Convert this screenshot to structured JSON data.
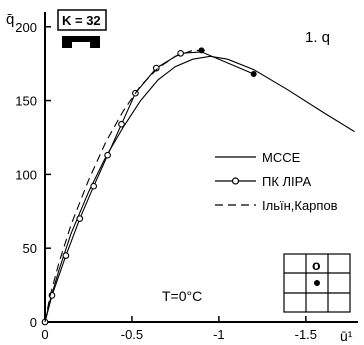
{
  "chart_data": {
    "type": "line",
    "ylabel": "q̄",
    "xlabel": "ū¹",
    "panel_label": "1. q",
    "badge": "K = 32",
    "annotation": "T=0°C",
    "cell_marker": "o",
    "xlim": [
      0,
      -1.8
    ],
    "ylim": [
      0,
      210
    ],
    "x_ticks": [
      "0",
      "-0.5",
      "-1",
      "-1.5"
    ],
    "x_tick_values": [
      0,
      -0.5,
      -1,
      -1.5
    ],
    "y_ticks": [
      "0",
      "50",
      "100",
      "150",
      "200"
    ],
    "y_tick_values": [
      0,
      50,
      100,
      150,
      200
    ],
    "legend_position": "center-right",
    "series": [
      {
        "name": "МССЕ",
        "style": "solid",
        "marker": "none",
        "points": [
          [
            0,
            0
          ],
          [
            -0.03,
            15
          ],
          [
            -0.08,
            35
          ],
          [
            -0.15,
            60
          ],
          [
            -0.25,
            88
          ],
          [
            -0.35,
            112
          ],
          [
            -0.45,
            132
          ],
          [
            -0.55,
            150
          ],
          [
            -0.65,
            164
          ],
          [
            -0.75,
            173
          ],
          [
            -0.85,
            178
          ],
          [
            -0.95,
            180
          ],
          [
            -1.05,
            178
          ],
          [
            -1.2,
            171
          ],
          [
            -1.4,
            157
          ],
          [
            -1.6,
            142
          ],
          [
            -1.78,
            129
          ]
        ]
      },
      {
        "name": "ПК ЛІРА",
        "style": "solid",
        "marker": "circle",
        "points": [
          [
            0,
            0
          ],
          [
            -0.04,
            18
          ],
          [
            -0.12,
            45
          ],
          [
            -0.2,
            70
          ],
          [
            -0.28,
            92
          ],
          [
            -0.36,
            113
          ],
          [
            -0.44,
            134
          ],
          [
            -0.52,
            155
          ],
          [
            -0.64,
            172
          ],
          [
            -0.78,
            182
          ],
          [
            -0.9,
            183
          ],
          [
            -1.2,
            168
          ]
        ],
        "marked_points": [
          [
            0,
            0
          ],
          [
            -0.04,
            18
          ],
          [
            -0.12,
            45
          ],
          [
            -0.2,
            70
          ],
          [
            -0.28,
            92
          ],
          [
            -0.36,
            113
          ],
          [
            -0.44,
            134
          ],
          [
            -0.52,
            155
          ],
          [
            -0.64,
            172
          ],
          [
            -0.78,
            182
          ]
        ]
      },
      {
        "name": "Ільїн,Карпов",
        "style": "dashed",
        "marker": "none",
        "points": [
          [
            0,
            0
          ],
          [
            -0.03,
            18
          ],
          [
            -0.08,
            40
          ],
          [
            -0.15,
            66
          ],
          [
            -0.25,
            96
          ],
          [
            -0.35,
            122
          ],
          [
            -0.45,
            143
          ],
          [
            -0.55,
            160
          ],
          [
            -0.65,
            172
          ],
          [
            -0.75,
            180
          ],
          [
            -0.85,
            184
          ],
          [
            -0.93,
            184
          ]
        ]
      }
    ],
    "highlight_points": [
      [
        -0.9,
        184
      ],
      [
        -1.2,
        168
      ]
    ]
  }
}
